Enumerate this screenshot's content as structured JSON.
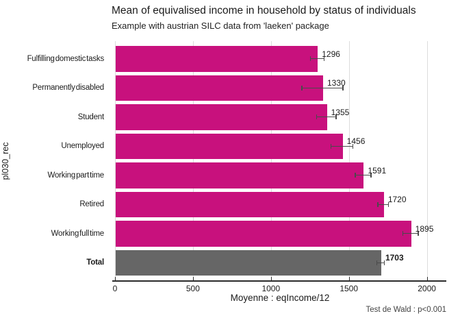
{
  "title": "Mean of equivalised income in household by status of individuals",
  "subtitle": "Example with austrian SILC data from 'laeken' package",
  "caption": "Test de Wald : p<0.001",
  "colors": {
    "bar": "#c8117d",
    "total_bar": "#666666",
    "gridline": "#dcdcdc",
    "axis_line": "#2b2b2b",
    "error_bar": "#4a4a4a",
    "text": "#1a1a1a"
  },
  "chart_data": {
    "type": "bar",
    "orientation": "horizontal",
    "title": "Mean of equivalised income in household by status of individuals",
    "subtitle": "Example with austrian SILC data from 'laeken' package",
    "xlabel": "Moyenne : eqIncome/12",
    "ylabel": "pl030_rec",
    "caption": "Test de Wald : p<0.001",
    "grid": "vertical-major-only",
    "xlim": [
      0,
      2115
    ],
    "x_ticks": [
      0,
      500,
      1000,
      1500,
      2000
    ],
    "categories": [
      "Fulfilling domestic tasks",
      "Permanently disabled",
      "Student",
      "Unemployed",
      "Working part time",
      "Retired",
      "Working full time",
      "Total"
    ],
    "values": [
      1296,
      1330,
      1355,
      1456,
      1591,
      1720,
      1895,
      1703
    ],
    "ci_low": [
      1252,
      1198,
      1292,
      1386,
      1540,
      1686,
      1846,
      1678
    ],
    "ci_high": [
      1340,
      1462,
      1418,
      1526,
      1642,
      1754,
      1944,
      1728
    ],
    "bar_color_key": [
      "bar",
      "bar",
      "bar",
      "bar",
      "bar",
      "bar",
      "bar",
      "total_bar"
    ],
    "legend": "none"
  }
}
